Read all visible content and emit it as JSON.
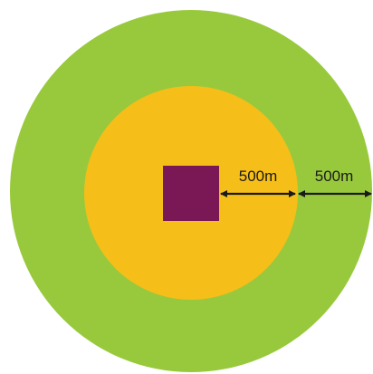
{
  "diagram": {
    "colors": {
      "outer_ring": "#98C93C",
      "inner_ring": "#F6BE19",
      "site": "#7A1755",
      "arrow": "#1a1a1a",
      "background": "#ffffff"
    },
    "labels": {
      "inner_distance": "500m",
      "outer_distance": "500m"
    }
  }
}
